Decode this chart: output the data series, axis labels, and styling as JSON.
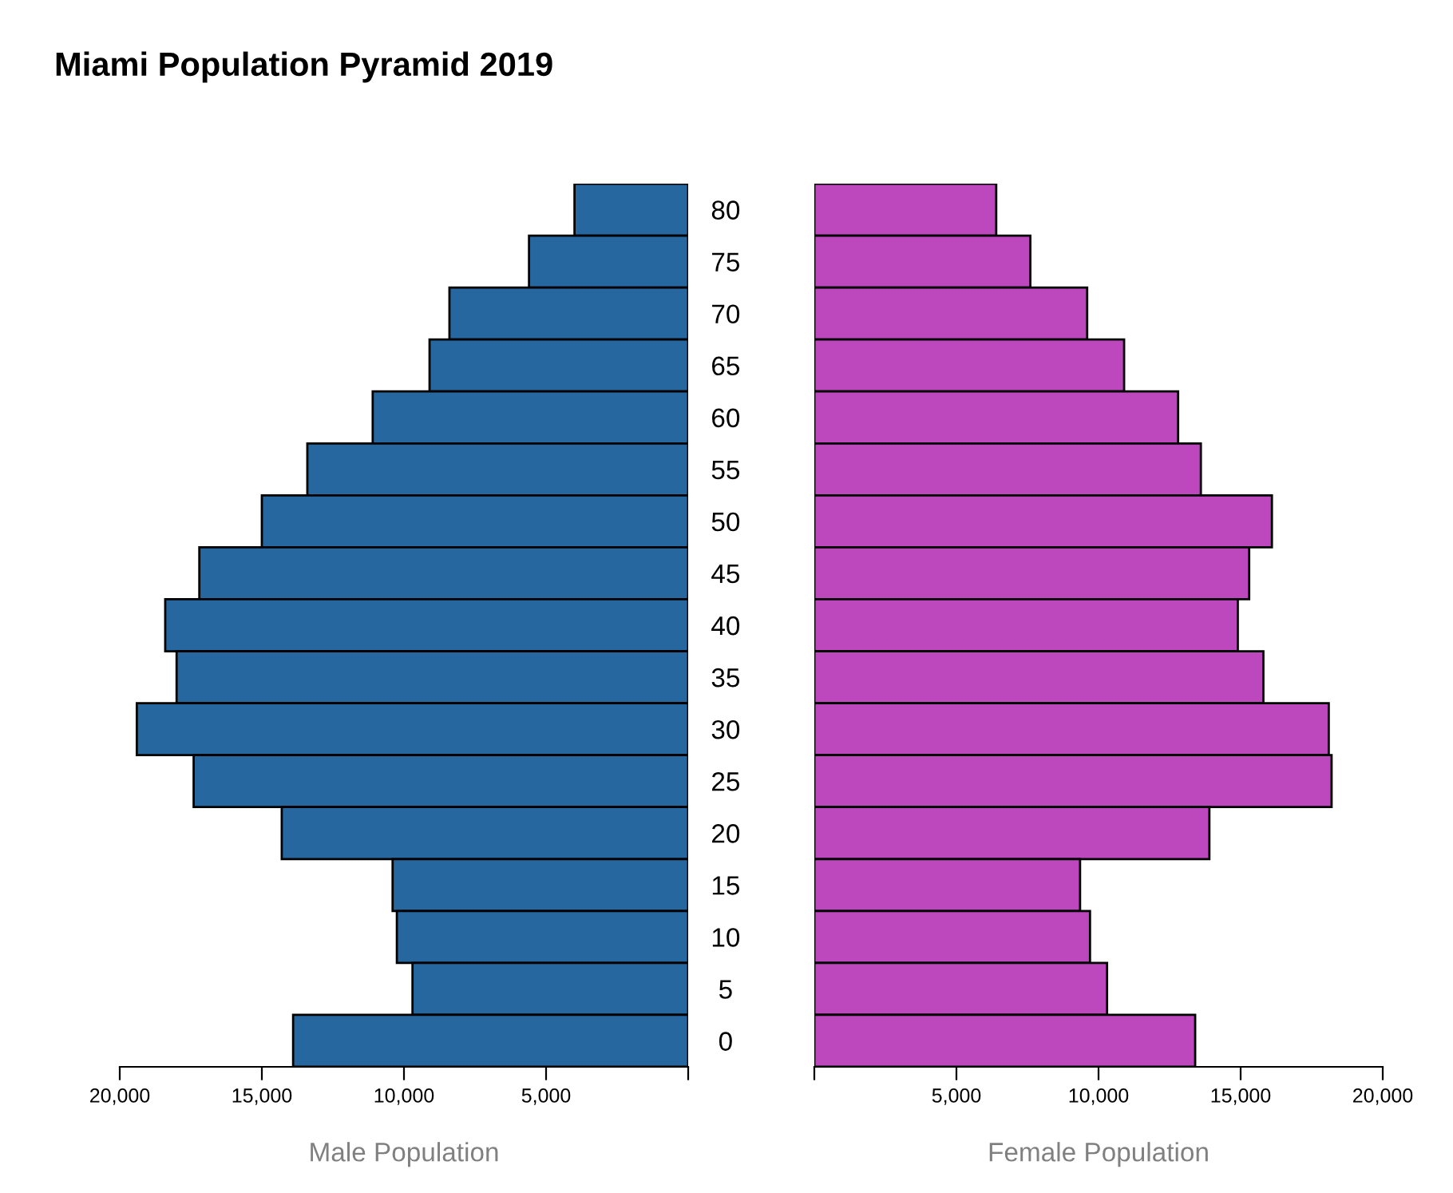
{
  "chart_data": [
    {
      "type": "bar",
      "orientation": "horizontal",
      "title": "Miami Population Pyramid 2019",
      "xlabel": "Male Population",
      "categories": [
        "80",
        "75",
        "70",
        "65",
        "60",
        "55",
        "50",
        "45",
        "40",
        "35",
        "30",
        "25",
        "20",
        "15",
        "10",
        "5",
        "0"
      ],
      "series": [
        {
          "color": "#25679e",
          "values": [
            4000,
            5600,
            8400,
            9100,
            11100,
            13400,
            15000,
            17200,
            18400,
            18000,
            19400,
            17400,
            14300,
            10400,
            10250,
            9700,
            13900
          ]
        }
      ],
      "xlim": [
        20000,
        0
      ],
      "xticks": [
        {
          "value": 20000,
          "label": "20,000"
        },
        {
          "value": 15000,
          "label": "15,000"
        },
        {
          "value": 10000,
          "label": "10,000"
        },
        {
          "value": 5000,
          "label": "5,000"
        },
        {
          "value": 0,
          "label": null
        }
      ],
      "tick_labels": "x",
      "grid": false
    },
    {
      "type": "bar",
      "orientation": "horizontal",
      "xlabel": "Female Population",
      "categories": [
        "80",
        "75",
        "70",
        "65",
        "60",
        "55",
        "50",
        "45",
        "40",
        "35",
        "30",
        "25",
        "20",
        "15",
        "10",
        "5",
        "0"
      ],
      "series": [
        {
          "color": "#bd47bc",
          "values": [
            6400,
            7600,
            9600,
            10900,
            12800,
            13600,
            16100,
            15300,
            14900,
            15800,
            18100,
            18200,
            13900,
            9350,
            9700,
            10300,
            13400
          ]
        }
      ],
      "xlim": [
        0,
        20000
      ],
      "xticks": [
        {
          "value": 0,
          "label": null
        },
        {
          "value": 5000,
          "label": "5,000"
        },
        {
          "value": 10000,
          "label": "10,000"
        },
        {
          "value": 15000,
          "label": "15,000"
        },
        {
          "value": 20000,
          "label": "20,000"
        }
      ],
      "grid": false
    }
  ]
}
